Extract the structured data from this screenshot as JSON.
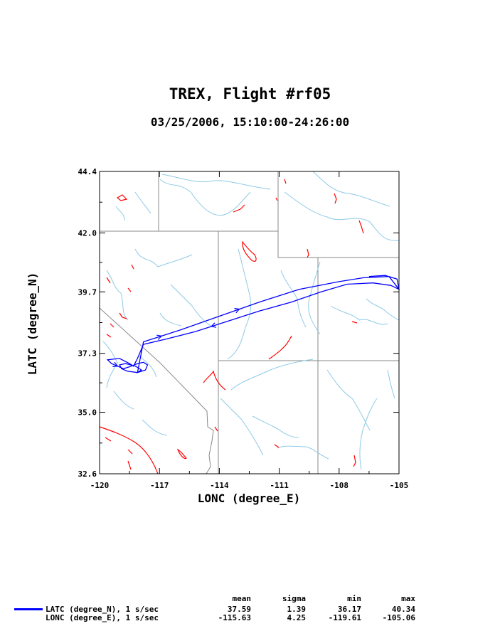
{
  "header": {
    "title": "TREX, Flight #rf05",
    "subtitle": "03/25/2006, 15:10:00-24:26:00"
  },
  "chart_data": {
    "type": "line",
    "title": "TREX, Flight #rf05",
    "subtitle": "03/25/2006, 15:10:00-24:26:00",
    "xlabel": "LONC (degree_E)",
    "ylabel": "LATC (degree_N)",
    "xlim": [
      -120,
      -105
    ],
    "ylim": [
      32.6,
      44.4
    ],
    "x_ticks": [
      "-120",
      "-117",
      "-114",
      "-111",
      "-108",
      "-105"
    ],
    "y_ticks": [
      "32.6",
      "35.0",
      "37.3",
      "39.7",
      "42.0",
      "44.4"
    ],
    "grid": false,
    "legend_position": "bottom-left",
    "series": [
      {
        "name": "LATC (degree_N), 1 s/sec",
        "color": "#0000ff",
        "x": [
          -106.5,
          -105.7,
          -105.1,
          -105.0,
          -105.4,
          -106.3,
          -107.6,
          -108.9,
          -110.4,
          -112.0,
          -113.6,
          -115.2,
          -116.7,
          -117.8,
          -118.1,
          -118.3,
          -118.5,
          -119.0,
          -119.6,
          -119.4,
          -118.8,
          -118.4,
          -118.1,
          -117.8,
          -117.6,
          -117.7,
          -118.1,
          -118.6,
          -118.9,
          -119.0,
          -118.7,
          -118.2,
          -117.9,
          -118.1,
          -117.8,
          -116.0,
          -114.0,
          -112.0,
          -110.0,
          -108.0,
          -106.8,
          -105.5,
          -105.0
        ],
        "y": [
          40.3,
          40.34,
          40.2,
          39.8,
          39.95,
          40.05,
          40.0,
          39.7,
          39.3,
          38.95,
          38.55,
          38.15,
          37.85,
          37.65,
          37.1,
          36.8,
          36.9,
          37.1,
          37.05,
          36.9,
          36.7,
          36.8,
          36.9,
          36.95,
          36.85,
          36.65,
          36.55,
          36.6,
          36.7,
          36.85,
          36.9,
          36.8,
          36.65,
          36.55,
          37.75,
          38.2,
          38.75,
          39.3,
          39.8,
          40.1,
          40.25,
          40.3,
          39.8
        ]
      }
    ],
    "stats": {
      "headers": [
        "mean",
        "sigma",
        "min",
        "max"
      ],
      "rows": [
        {
          "label": "LATC (degree_N), 1 s/sec",
          "mean": "37.59",
          "sigma": "1.39",
          "min": "36.17",
          "max": "40.34"
        },
        {
          "label": "LONC (degree_E), 1 s/sec",
          "mean": "-115.63",
          "sigma": "4.25",
          "min": "-119.61",
          "max": "-105.06"
        }
      ]
    },
    "colors": {
      "track": "#0000ff",
      "rivers": "#8ecae6",
      "boundaries": "#888888",
      "lakes": "#ff0000"
    }
  }
}
